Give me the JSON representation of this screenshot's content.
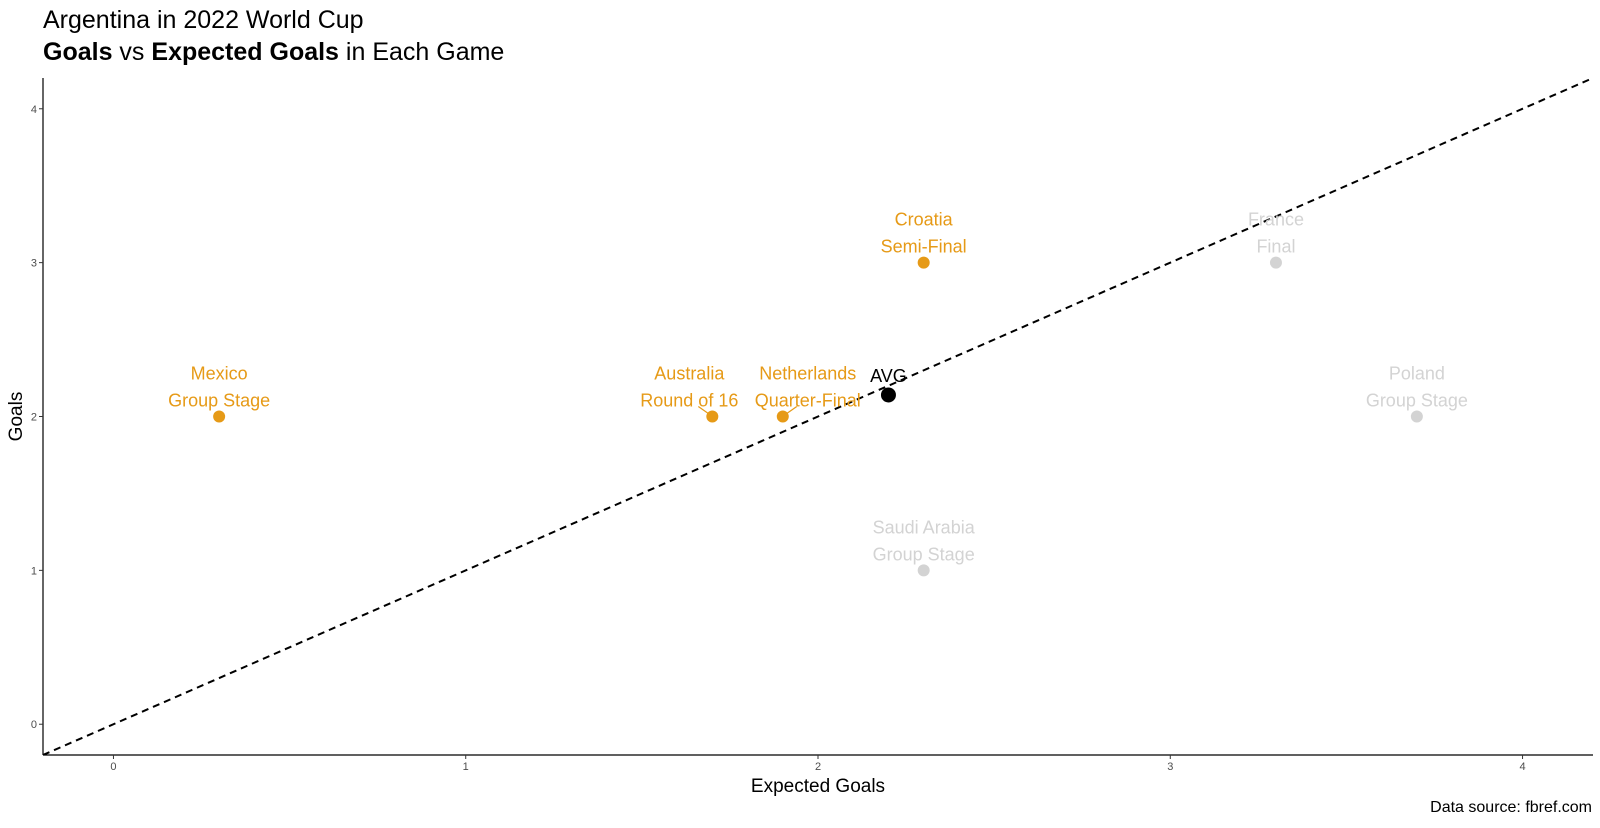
{
  "title": {
    "line1": "Argentina in 2022 World Cup",
    "line2_part1": "Goals",
    "line2_part2": " vs ",
    "line2_part3": "Expected Goals",
    "line2_part4": " in Each Game"
  },
  "caption": "Data source: fbref.com",
  "colors": {
    "highlight": "#E69A17",
    "muted": "#D3D3D3",
    "average": "#000000",
    "reference_line": "#000000"
  },
  "chart_data": {
    "type": "scatter",
    "xlabel": "Expected Goals",
    "ylabel": "Goals",
    "xlim": [
      -0.2,
      4.2
    ],
    "ylim": [
      -0.2,
      4.2
    ],
    "x_ticks": [
      0,
      1,
      2,
      3,
      4
    ],
    "y_ticks": [
      0,
      1,
      2,
      3,
      4
    ],
    "grid": false,
    "reference_line": {
      "type": "y = x",
      "style": "dashed"
    },
    "points": [
      {
        "opponent": "Mexico",
        "stage": "Group Stage",
        "x": 0.3,
        "y": 2,
        "highlight": true
      },
      {
        "opponent": "Australia",
        "stage": "Round of 16",
        "x": 1.7,
        "y": 2,
        "highlight": true
      },
      {
        "opponent": "Netherlands",
        "stage": "Quarter-Final",
        "x": 1.9,
        "y": 2,
        "highlight": true
      },
      {
        "opponent": "Croatia",
        "stage": "Semi-Final",
        "x": 2.3,
        "y": 3,
        "highlight": true
      },
      {
        "opponent": "France",
        "stage": "Final",
        "x": 3.3,
        "y": 3,
        "highlight": false
      },
      {
        "opponent": "Poland",
        "stage": "Group Stage",
        "x": 3.7,
        "y": 2,
        "highlight": false
      },
      {
        "opponent": "Saudi Arabia",
        "stage": "Group Stage",
        "x": 2.3,
        "y": 1,
        "highlight": false
      }
    ],
    "average_point": {
      "label": "AVG",
      "x": 2.2,
      "y": 2.14
    }
  }
}
